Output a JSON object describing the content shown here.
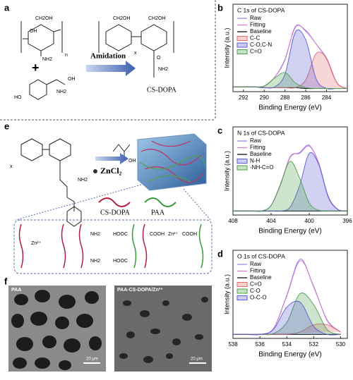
{
  "panels": {
    "a": {
      "label": "a",
      "n": "n",
      "x": "x",
      "plus": "+",
      "arrow_label": "Amidation",
      "product": "CS-DOPA",
      "groups": [
        "CH2OH",
        "OH",
        "NH2",
        "O",
        "HO",
        "OH"
      ]
    },
    "e": {
      "label": "e",
      "x": "x",
      "reagent": "ZnCl₂",
      "groups": [
        "NH2",
        "OH"
      ],
      "legend": [
        "CS-DOPA",
        "PAA"
      ],
      "interactions": [
        "NH2",
        "HOOC",
        "COOH",
        "Zn²⁺"
      ]
    },
    "f": {
      "label": "f",
      "images": [
        {
          "label": "PAA",
          "scale": "20 μm"
        },
        {
          "label": "PAA-CS-DOPA/Zn²⁺",
          "scale": "20 μm"
        }
      ]
    }
  },
  "chart_data": [
    {
      "type": "line",
      "panel": "b",
      "title": "C 1s of CS-DOPA",
      "xlabel": "Binding Energy (eV)",
      "ylabel": "Intensity (a.u.)",
      "x": [
        293,
        292,
        291,
        290,
        289,
        288,
        287,
        286,
        285,
        284,
        283,
        282
      ],
      "xlim": [
        293,
        282
      ],
      "xticks": [
        292,
        290,
        288,
        286,
        284
      ],
      "ylim": [
        0,
        110
      ],
      "legend": "upper left",
      "series": [
        {
          "name": "Raw",
          "color": "#8f8fe8",
          "values": [
            6,
            6,
            6,
            7,
            18,
            41,
            81,
            77,
            60,
            42,
            11,
            4
          ]
        },
        {
          "name": "Fitting",
          "color": "#d77ad0",
          "values": [
            6,
            6,
            6,
            7,
            18,
            40,
            82,
            76,
            60,
            41,
            11,
            4
          ]
        },
        {
          "name": "Baseline",
          "color": "#111111",
          "values": [
            6,
            6,
            6,
            5,
            5,
            5,
            5,
            4,
            4,
            4,
            4,
            4
          ]
        },
        {
          "name": "C-C",
          "color": "#e06a6a",
          "filled": true,
          "values": [
            6,
            6,
            6,
            5,
            5,
            5,
            5,
            15,
            48,
            42,
            11,
            4
          ]
        },
        {
          "name": "C-O,C-N",
          "color": "#5a5ad8",
          "filled": true,
          "values": [
            6,
            6,
            6,
            5,
            6,
            22,
            75,
            65,
            16,
            4,
            4,
            4
          ]
        },
        {
          "name": "C=O",
          "color": "#4aa04a",
          "filled": true,
          "values": [
            6,
            6,
            6,
            7,
            17,
            24,
            11,
            5,
            4,
            4,
            4,
            4
          ]
        }
      ]
    },
    {
      "type": "line",
      "panel": "c",
      "title": "N 1s of CS-DOPA",
      "xlabel": "Binding Energy (eV)",
      "ylabel": "Intensity (a.u.)",
      "x": [
        408,
        407,
        406,
        405,
        404,
        403,
        402,
        401,
        400,
        399,
        398,
        397,
        396
      ],
      "xlim": [
        408,
        396
      ],
      "xticks": [
        408,
        404,
        400,
        396
      ],
      "ylim": [
        0,
        110
      ],
      "legend": "upper left",
      "series": [
        {
          "name": "Raw",
          "color": "#8f8fe8",
          "values": [
            5,
            5,
            5,
            5,
            12,
            39,
            72,
            78,
            87,
            64,
            23,
            7,
            5
          ]
        },
        {
          "name": "Fitting",
          "color": "#d77ad0",
          "values": [
            5,
            5,
            5,
            5,
            12,
            38,
            73,
            77,
            86,
            65,
            22,
            7,
            5
          ]
        },
        {
          "name": "Baseline",
          "color": "#111111",
          "values": [
            5,
            5,
            5,
            5,
            5,
            5,
            5,
            5,
            5,
            5,
            5,
            5,
            5
          ]
        },
        {
          "name": "N-H",
          "color": "#5a5ad8",
          "filled": true,
          "values": [
            5,
            5,
            5,
            5,
            5,
            5,
            10,
            37,
            77,
            63,
            23,
            7,
            5
          ]
        },
        {
          "name": "-NH-C=O",
          "color": "#4aa04a",
          "filled": true,
          "values": [
            5,
            5,
            5,
            5,
            12,
            39,
            67,
            46,
            15,
            6,
            5,
            5,
            5
          ]
        }
      ]
    },
    {
      "type": "line",
      "panel": "d",
      "title": "O 1s of CS-DOPA",
      "xlabel": "Binding Energy (eV)",
      "ylabel": "Intensity (a.u.)",
      "x": [
        538,
        537,
        536,
        535,
        534,
        533,
        532,
        531,
        530
      ],
      "xlim": [
        538,
        529.5
      ],
      "xticks": [
        538,
        536,
        534,
        532,
        530
      ],
      "ylim": [
        0,
        110
      ],
      "legend": "upper left",
      "series": [
        {
          "name": "Raw",
          "color": "#8f8fe8",
          "values": [
            5,
            5,
            5,
            12,
            54,
            99,
            64,
            23,
            8
          ]
        },
        {
          "name": "Fitting",
          "color": "#d77ad0",
          "values": [
            5,
            5,
            5,
            12,
            53,
            97,
            65,
            22,
            8
          ]
        },
        {
          "name": "Baseline",
          "color": "#111111",
          "values": [
            5,
            5,
            5,
            5,
            5,
            5,
            5,
            5,
            5
          ]
        },
        {
          "name": "C=O",
          "color": "#e06a6a",
          "filled": true,
          "values": [
            5,
            5,
            5,
            5,
            5,
            8,
            17,
            17,
            8
          ]
        },
        {
          "name": "C-O",
          "color": "#4aa04a",
          "filled": true,
          "values": [
            5,
            5,
            5,
            6,
            20,
            56,
            42,
            11,
            5
          ]
        },
        {
          "name": "O-C-O",
          "color": "#5a5ad8",
          "filled": true,
          "values": [
            5,
            5,
            5,
            11,
            39,
            45,
            15,
            5,
            5
          ]
        }
      ]
    }
  ]
}
